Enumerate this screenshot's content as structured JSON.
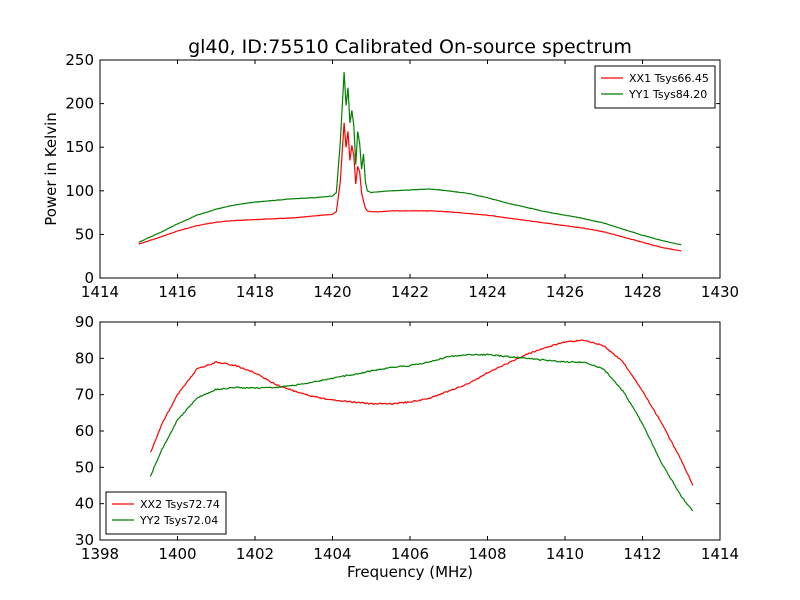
{
  "figure": {
    "title": "gl40, ID:75510 Calibrated On-source spectrum"
  },
  "chart_data": [
    {
      "type": "line",
      "title": "gl40, ID:75510 Calibrated On-source spectrum",
      "xlabel": "",
      "ylabel": "Power in Kelvin",
      "xlim": [
        1414,
        1430
      ],
      "ylim": [
        0,
        250
      ],
      "xticks": [
        1414,
        1416,
        1418,
        1420,
        1422,
        1424,
        1426,
        1428,
        1430
      ],
      "yticks": [
        0,
        50,
        100,
        150,
        200,
        250
      ],
      "grid": false,
      "legend_position": "top-right",
      "series": [
        {
          "name": "XX1 Tsys66.45",
          "color": "#ff0000",
          "x": [
            1415.0,
            1415.5,
            1416.0,
            1416.5,
            1417.0,
            1417.5,
            1418.0,
            1418.5,
            1419.0,
            1419.5,
            1420.0,
            1420.1,
            1420.2,
            1420.3,
            1420.35,
            1420.4,
            1420.45,
            1420.5,
            1420.55,
            1420.6,
            1420.65,
            1420.7,
            1420.75,
            1420.8,
            1420.85,
            1420.9,
            1421.0,
            1421.2,
            1421.5,
            1422.0,
            1422.5,
            1423.0,
            1423.5,
            1424.0,
            1424.5,
            1425.0,
            1425.5,
            1426.0,
            1426.5,
            1427.0,
            1427.5,
            1428.0,
            1428.5,
            1429.0
          ],
          "y": [
            39,
            46,
            54,
            60,
            64,
            66,
            67,
            68,
            69,
            71,
            73,
            76,
            110,
            178,
            150,
            168,
            135,
            152,
            140,
            108,
            128,
            122,
            98,
            88,
            80,
            77,
            76,
            76,
            77,
            77,
            77,
            76,
            74,
            72,
            69,
            66,
            63,
            60,
            57,
            53,
            47,
            41,
            35,
            31
          ]
        },
        {
          "name": "YY1 Tsys84.20",
          "color": "#008000",
          "x": [
            1415.0,
            1415.5,
            1416.0,
            1416.5,
            1417.0,
            1417.5,
            1418.0,
            1418.5,
            1419.0,
            1419.5,
            1420.0,
            1420.1,
            1420.2,
            1420.3,
            1420.35,
            1420.4,
            1420.45,
            1420.5,
            1420.55,
            1420.6,
            1420.65,
            1420.7,
            1420.75,
            1420.8,
            1420.85,
            1420.9,
            1421.0,
            1421.2,
            1421.5,
            1422.0,
            1422.5,
            1423.0,
            1423.5,
            1424.0,
            1424.5,
            1425.0,
            1425.5,
            1426.0,
            1426.5,
            1427.0,
            1427.5,
            1428.0,
            1428.5,
            1429.0
          ],
          "y": [
            41,
            51,
            62,
            72,
            79,
            84,
            87,
            89,
            91,
            92,
            94,
            98,
            155,
            236,
            198,
            218,
            178,
            192,
            175,
            130,
            168,
            155,
            125,
            142,
            110,
            100,
            98,
            99,
            100,
            101,
            102,
            100,
            97,
            92,
            86,
            81,
            76,
            72,
            68,
            63,
            56,
            49,
            43,
            38
          ]
        }
      ]
    },
    {
      "type": "line",
      "title": "",
      "xlabel": "Frequency (MHz)",
      "ylabel": "",
      "xlim": [
        1398,
        1414
      ],
      "ylim": [
        30,
        90
      ],
      "xticks": [
        1398,
        1400,
        1402,
        1404,
        1406,
        1408,
        1410,
        1412,
        1414
      ],
      "yticks": [
        30,
        40,
        50,
        60,
        70,
        80,
        90
      ],
      "grid": false,
      "legend_position": "bottom-left",
      "series": [
        {
          "name": "XX2 Tsys72.74",
          "color": "#ff0000",
          "x": [
            1399.3,
            1399.6,
            1400.0,
            1400.5,
            1401.0,
            1401.5,
            1402.0,
            1402.5,
            1403.0,
            1403.5,
            1404.0,
            1404.5,
            1405.0,
            1405.5,
            1406.0,
            1406.5,
            1407.0,
            1407.5,
            1408.0,
            1408.5,
            1409.0,
            1409.5,
            1410.0,
            1410.5,
            1411.0,
            1411.5,
            1412.0,
            1412.5,
            1413.0,
            1413.3
          ],
          "y": [
            54,
            62,
            70,
            77,
            79,
            78,
            76,
            73,
            71,
            69.5,
            68.5,
            68,
            67.5,
            67.5,
            68,
            69,
            71,
            73,
            76,
            78.5,
            81,
            83,
            84.5,
            85,
            83.5,
            79,
            71,
            62,
            52,
            45
          ]
        },
        {
          "name": "YY2 Tsys72.04",
          "color": "#008000",
          "x": [
            1399.3,
            1399.6,
            1400.0,
            1400.5,
            1401.0,
            1401.5,
            1402.0,
            1402.5,
            1403.0,
            1403.5,
            1404.0,
            1404.5,
            1405.0,
            1405.5,
            1406.0,
            1406.5,
            1407.0,
            1407.5,
            1408.0,
            1408.5,
            1409.0,
            1409.5,
            1410.0,
            1410.5,
            1411.0,
            1411.5,
            1412.0,
            1412.5,
            1413.0,
            1413.3
          ],
          "y": [
            47.5,
            55,
            63,
            69,
            71.5,
            72,
            71.8,
            72,
            72.5,
            73.5,
            74.5,
            75.5,
            76.5,
            77.5,
            78,
            79,
            80.5,
            81,
            81,
            80.5,
            80,
            79.5,
            79,
            79,
            77,
            71,
            62,
            51,
            42,
            38
          ]
        }
      ]
    }
  ]
}
